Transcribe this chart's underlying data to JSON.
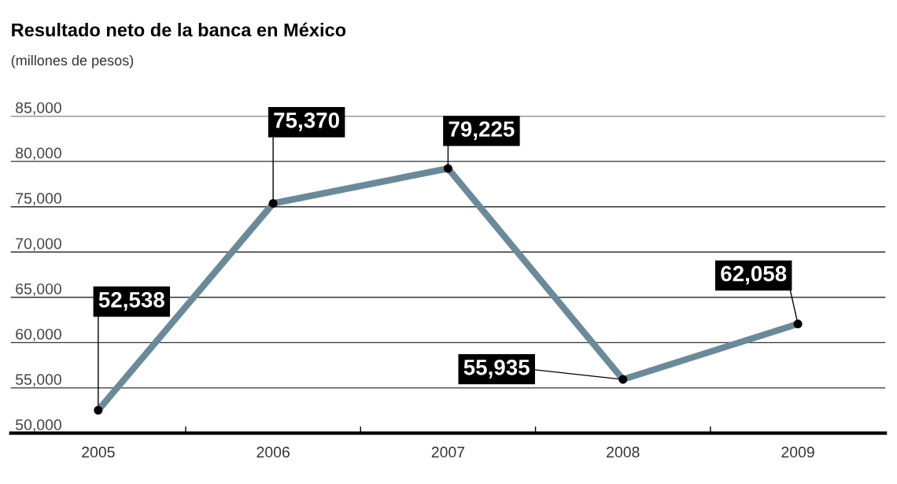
{
  "chart_data": {
    "type": "line",
    "title": "Resultado neto de la banca en México",
    "subtitle": "(millones de pesos)",
    "categories": [
      "2005",
      "2006",
      "2007",
      "2008",
      "2009"
    ],
    "series": [
      {
        "color": "#6b8a99",
        "values": [
          52538,
          75370,
          79225,
          55935,
          62058
        ],
        "value_labels": [
          "52,538",
          "75,370",
          "79,225",
          "55,935",
          "62,058"
        ]
      }
    ],
    "ylim": [
      50000,
      85000
    ],
    "yticks": [
      {
        "value": 50000,
        "label": "50,000"
      },
      {
        "value": 55000,
        "label": "55,000"
      },
      {
        "value": 60000,
        "label": "60,000"
      },
      {
        "value": 65000,
        "label": "65,000"
      },
      {
        "value": 70000,
        "label": "70,000"
      },
      {
        "value": 75000,
        "label": "75,000"
      },
      {
        "value": 80000,
        "label": "80,000"
      },
      {
        "value": 85000,
        "label": "85,000"
      }
    ],
    "grid": "y",
    "marker": "circle",
    "line_style": "solid",
    "legend": false
  }
}
